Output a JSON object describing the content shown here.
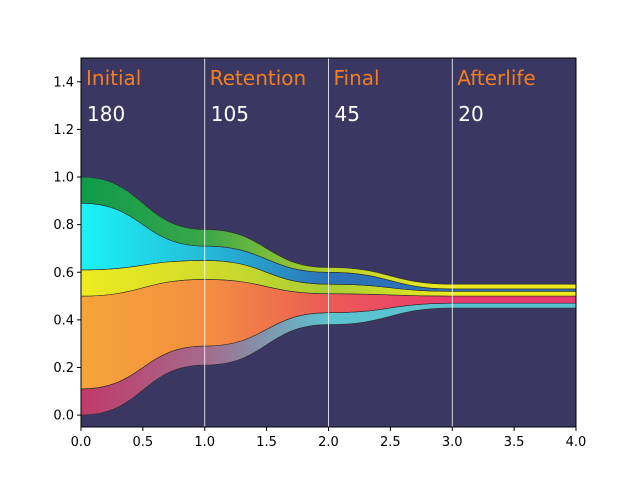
{
  "chart_data": {
    "type": "area",
    "title": "",
    "xlabel": "",
    "ylabel": "",
    "xlim": [
      0,
      4
    ],
    "ylim": [
      -0.05,
      1.5
    ],
    "grid": false,
    "background_color": "#3a3862",
    "xticks": [
      0.0,
      0.5,
      1.0,
      1.5,
      2.0,
      2.5,
      3.0,
      3.5,
      4.0
    ],
    "xtick_labels": [
      "0.0",
      "0.5",
      "1.0",
      "1.5",
      "2.0",
      "2.5",
      "3.0",
      "3.5",
      "4.0"
    ],
    "yticks": [
      0.0,
      0.2,
      0.4,
      0.6,
      0.8,
      1.0,
      1.2,
      1.4
    ],
    "ytick_labels": [
      "0.0",
      "0.2",
      "0.4",
      "0.6",
      "0.8",
      "1.0",
      "1.2",
      "1.4"
    ],
    "stage_dividers": [
      1,
      2,
      3
    ],
    "stages": [
      {
        "label": "Initial",
        "count": "180",
        "x": 0
      },
      {
        "label": "Retention",
        "count": "105",
        "x": 1
      },
      {
        "label": "Final",
        "count": "45",
        "x": 2
      },
      {
        "label": "Afterlife",
        "count": "20",
        "x": 3
      }
    ],
    "stage_label_color": "#f47d20",
    "stage_count_color": "#ffffff",
    "x": [
      0,
      1,
      2,
      3,
      4
    ],
    "bands": [
      {
        "name": "band-1",
        "colors": [
          "#c03a6a",
          "#a56a8c",
          "#5bc3d0",
          "#5bc3d0",
          "#5bc3d0"
        ],
        "bottom": [
          0.0,
          0.21,
          0.38,
          0.45,
          0.45
        ],
        "top": [
          0.11,
          0.29,
          0.43,
          0.47,
          0.47
        ]
      },
      {
        "name": "band-2",
        "colors": [
          "#f6a43a",
          "#f39040",
          "#eb5b55",
          "#ea3a73",
          "#ea3a73"
        ],
        "bottom": [
          0.11,
          0.29,
          0.43,
          0.47,
          0.47
        ],
        "top": [
          0.5,
          0.57,
          0.51,
          0.5,
          0.5
        ]
      },
      {
        "name": "band-3",
        "colors": [
          "#eeeb20",
          "#d2dc2a",
          "#a8cc35",
          "#eeeb20",
          "#eeeb20"
        ],
        "bottom": [
          0.5,
          0.57,
          0.51,
          0.5,
          0.5
        ],
        "top": [
          0.61,
          0.65,
          0.55,
          0.52,
          0.52
        ]
      },
      {
        "name": "band-4",
        "colors": [
          "#1cf2f6",
          "#25bcd8",
          "#2c72b8",
          "#2c72b8",
          "#2c72b8"
        ],
        "bottom": [
          0.61,
          0.65,
          0.55,
          0.52,
          0.52
        ],
        "top": [
          0.89,
          0.71,
          0.6,
          0.53,
          0.53
        ]
      },
      {
        "name": "band-5",
        "colors": [
          "#0e9a4a",
          "#3aa64a",
          "#b4d02a",
          "#eeeb20",
          "#eeeb20"
        ],
        "bottom": [
          0.89,
          0.71,
          0.6,
          0.53,
          0.53
        ],
        "top": [
          1.0,
          0.78,
          0.62,
          0.55,
          0.55
        ]
      }
    ]
  }
}
